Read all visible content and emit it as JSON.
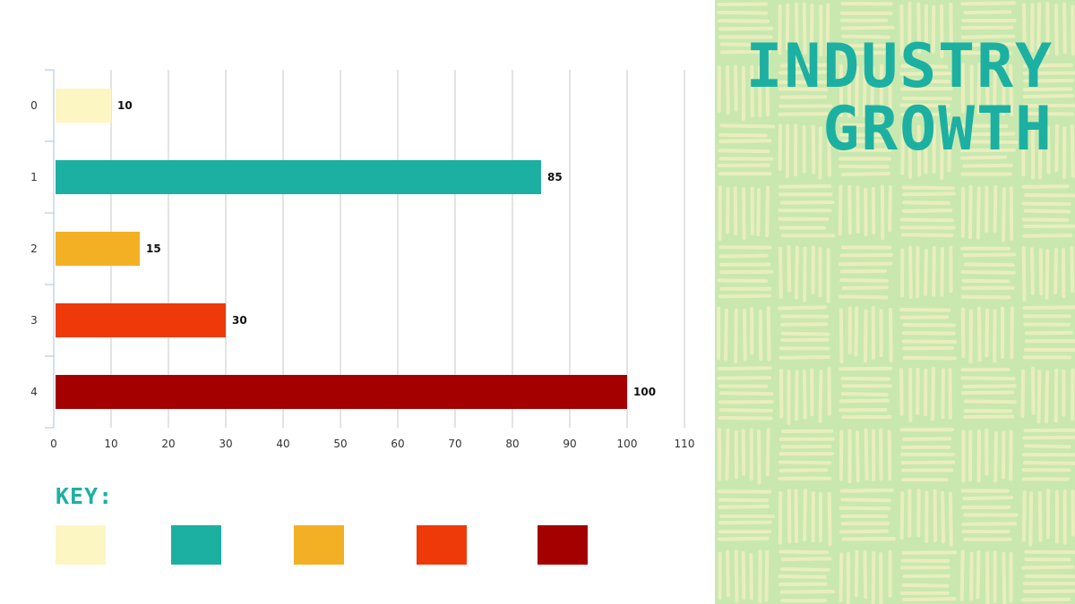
{
  "slide": {
    "title_line1": "INDUSTRY",
    "title_line2": "GROWTH",
    "key_label": "KEY:"
  },
  "colors": {
    "accent": "#1cb0a2",
    "panel_bg": "#c8e8b0",
    "panel_pattern": "#f1f0bf",
    "grid": "#c8c8c8"
  },
  "chart_data": {
    "type": "bar",
    "orientation": "horizontal",
    "categories": [
      "0",
      "1",
      "2",
      "3",
      "4"
    ],
    "values": [
      10,
      85,
      15,
      30,
      100
    ],
    "bar_colors": [
      "#fbf6c2",
      "#1cb0a2",
      "#f4b024",
      "#ee3a09",
      "#a50000"
    ],
    "data_labels": [
      "10",
      "85",
      "15",
      "30",
      "100"
    ],
    "x_ticks": [
      0,
      10,
      20,
      30,
      40,
      50,
      60,
      70,
      80,
      90,
      100,
      110
    ],
    "xlim": [
      0,
      110
    ],
    "grid": true,
    "legend": {
      "position": "bottom",
      "labels": []
    },
    "title": "",
    "xlabel": "",
    "ylabel": ""
  }
}
